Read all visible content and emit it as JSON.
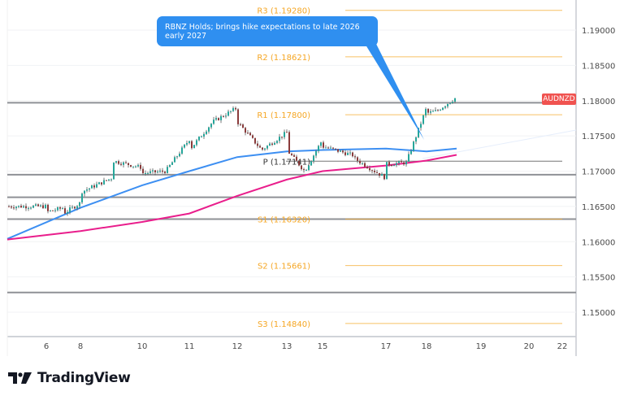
{
  "chart_data": {
    "type": "line",
    "symbol": "AUDNZD",
    "title": "",
    "annotation": "RBNZ Holds; brings hike expectations to late 2026 early 2027",
    "xlabel": "",
    "ylabel": "",
    "ylim": [
      1.1455,
      1.1975
    ],
    "y_ticks": [
      "1.19000",
      "1.18500",
      "1.18000",
      "1.17500",
      "1.17000",
      "1.16500",
      "1.16000",
      "1.15500",
      "1.15000"
    ],
    "x_ticks": [
      "6",
      "8",
      "10",
      "11",
      "12",
      "13",
      "15",
      "17",
      "18",
      "19",
      "20",
      "22"
    ],
    "grid": true,
    "pivot_levels": [
      {
        "label": "R3 (1.19280)",
        "value": 1.1928
      },
      {
        "label": "R2 (1.18621)",
        "value": 1.18621
      },
      {
        "label": "R1 (1.17800)",
        "value": 1.178
      },
      {
        "label": "P (1.17141)",
        "value": 1.17141
      },
      {
        "label": "S1 (1.16320)",
        "value": 1.1632
      },
      {
        "label": "S2 (1.15661)",
        "value": 1.15661
      },
      {
        "label": "S3 (1.14840)",
        "value": 1.1484
      }
    ],
    "horizontal_lines": [
      1.1797,
      1.1695,
      1.1663,
      1.1632,
      1.1528
    ],
    "series": [
      {
        "name": "Price (approx close)",
        "color": "#26a69a",
        "x": [
          "6",
          "6",
          "7",
          "7",
          "8",
          "8",
          "9",
          "9",
          "10",
          "10",
          "10.5",
          "11",
          "11",
          "11.5",
          "12",
          "12",
          "12.5",
          "13",
          "13",
          "14",
          "15",
          "15",
          "16",
          "16",
          "17",
          "17",
          "17.5",
          "18",
          "18",
          "18.3",
          "18.5"
        ],
        "values": [
          1.165,
          1.1642,
          1.1648,
          1.164,
          1.1655,
          1.167,
          1.169,
          1.1715,
          1.1705,
          1.1697,
          1.17,
          1.1745,
          1.173,
          1.177,
          1.179,
          1.177,
          1.173,
          1.1755,
          1.173,
          1.17,
          1.1745,
          1.1735,
          1.1722,
          1.1718,
          1.169,
          1.171,
          1.1712,
          1.179,
          1.1782,
          1.1785,
          1.1805
        ]
      },
      {
        "name": "MA (blue)",
        "color": "#3d8ff2",
        "x": [
          "5",
          "8",
          "10",
          "11",
          "12",
          "13",
          "15",
          "17",
          "18",
          "18.5"
        ],
        "values": [
          1.1604,
          1.1648,
          1.168,
          1.17,
          1.172,
          1.1728,
          1.173,
          1.1732,
          1.1728,
          1.1732
        ]
      },
      {
        "name": "MA (pink)",
        "color": "#e91e8c",
        "x": [
          "5",
          "8",
          "10",
          "11",
          "12",
          "13",
          "15",
          "17",
          "18",
          "18.5"
        ],
        "values": [
          1.1603,
          1.1615,
          1.1628,
          1.164,
          1.1665,
          1.1688,
          1.17,
          1.1708,
          1.1715,
          1.1723
        ]
      }
    ]
  },
  "labels": {
    "callout": "RBNZ Holds; brings hike expectations to late 2026 early 2027",
    "symbol_tag": "AUDNZD",
    "brand": "TradingView",
    "brand_icon": "tradingview-logo-icon"
  },
  "colors": {
    "pivot": "#f5a623",
    "callout": "#2f8ff0",
    "symbol_tag": "#f05350",
    "ma_blue": "#3d8ff2",
    "ma_pink": "#e91e8c",
    "candle_up": "#26a69a",
    "candle_down": "#8a3b3b"
  }
}
